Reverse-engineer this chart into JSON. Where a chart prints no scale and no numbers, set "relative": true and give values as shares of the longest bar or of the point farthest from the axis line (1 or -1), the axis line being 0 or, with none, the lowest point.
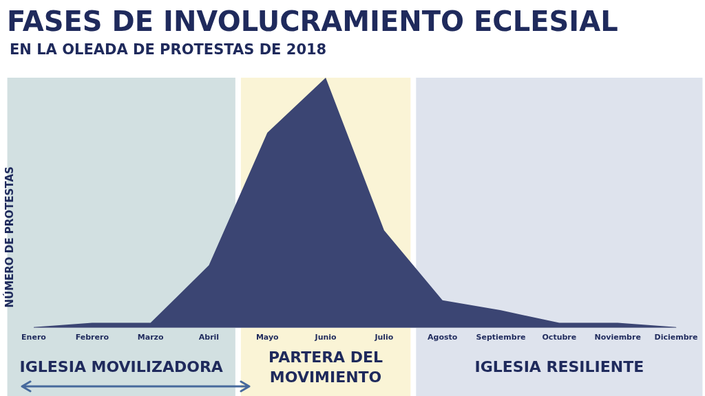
{
  "chart_data": {
    "type": "area",
    "title": "FASES DE INVOLUCRAMIENTO ECLESIAL",
    "subtitle": "EN LA OLEADA DE PROTESTAS DE 2018",
    "ylabel": "NÚMERO DE PROTESTAS",
    "relative": true,
    "categories": [
      "Enero",
      "Febrero",
      "Marzo",
      "Abril",
      "Mayo",
      "Junio",
      "Julio",
      "Agosto",
      "Septiembre",
      "Octubre",
      "Noviembre",
      "Diciembre"
    ],
    "values": [
      0.003,
      0.02,
      0.02,
      0.25,
      0.78,
      1,
      0.39,
      0.11,
      0.07,
      0.02,
      0.02,
      0.003
    ],
    "color": "#3b4573",
    "bands": [
      {
        "axis": "x",
        "from": "Enero",
        "to": "Abril",
        "label": "IGLESIA MOVILIZADORA",
        "color": "#d2e0e1"
      },
      {
        "axis": "x",
        "from": "Mayo",
        "to": "Julio",
        "label": "PARTERA DEL MOVIMIENTO",
        "color": "#faf4d6"
      },
      {
        "axis": "x",
        "from": "Agosto",
        "to": "Diciembre",
        "label": "IGLESIA RESILIENTE",
        "color": "#dee3ed"
      }
    ]
  }
}
